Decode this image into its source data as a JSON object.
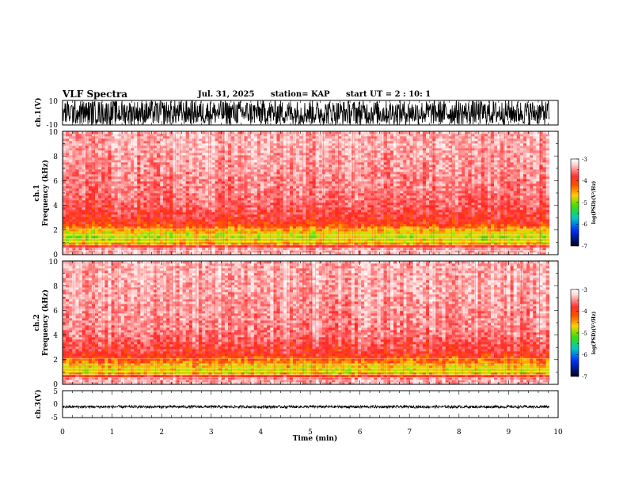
{
  "header": {
    "title": "VLF Spectra",
    "date": "Jul. 31, 2025",
    "station": "station= KAP",
    "start": "start  UT  =   2 : 10: 1"
  },
  "chart_data": [
    {
      "type": "line",
      "name": "ch1-waveform",
      "ylabel": "ch.1(V)",
      "ylim": [
        -10,
        10
      ],
      "y_ticks": [
        "10",
        "-10"
      ],
      "xlim": [
        0,
        10
      ],
      "x_end": 9.82,
      "envelope": {
        "min": -10,
        "max": 10,
        "note": "dense broadband signal saturating the panel"
      }
    },
    {
      "type": "heatmap",
      "name": "ch1-spectrogram",
      "ylabel": "ch.1",
      "ylabel2": "Frequency (kHz)",
      "ylim": [
        0,
        10
      ],
      "y_ticks": [
        "0",
        "2",
        "4",
        "6",
        "8",
        "10"
      ],
      "xlim": [
        0,
        10
      ],
      "x_end": 9.82,
      "intensity_by_freq_khz": [
        [
          0,
          -3.3
        ],
        [
          0.5,
          -3.5
        ],
        [
          1.0,
          -4.6
        ],
        [
          1.5,
          -4.8
        ],
        [
          2.0,
          -4.5
        ],
        [
          2.5,
          -4.0
        ],
        [
          3.0,
          -3.9
        ],
        [
          3.5,
          -3.8
        ],
        [
          4.0,
          -3.7
        ],
        [
          5.0,
          -3.6
        ],
        [
          6.0,
          -3.55
        ],
        [
          7.0,
          -3.5
        ],
        [
          8.0,
          -3.45
        ],
        [
          9.0,
          -3.4
        ],
        [
          10.0,
          -3.4
        ]
      ],
      "colorbar": {
        "title": "log(PSD)(V²/Hz)",
        "range": [
          -7,
          -3
        ],
        "labels": [
          "-3",
          "-4",
          "-5",
          "-6",
          "-7"
        ]
      }
    },
    {
      "type": "heatmap",
      "name": "ch2-spectrogram",
      "ylabel": "ch.2",
      "ylabel2": "Frequency (kHz)",
      "ylim": [
        0,
        10
      ],
      "y_ticks": [
        "0",
        "2",
        "4",
        "6",
        "8",
        "10"
      ],
      "xlim": [
        0,
        10
      ],
      "x_end": 9.82,
      "intensity_by_freq_khz": [
        [
          0,
          -3.3
        ],
        [
          0.5,
          -3.5
        ],
        [
          1.0,
          -4.7
        ],
        [
          1.5,
          -4.5
        ],
        [
          2.0,
          -4.2
        ],
        [
          2.5,
          -3.9
        ],
        [
          3.0,
          -3.8
        ],
        [
          3.5,
          -3.7
        ],
        [
          4.0,
          -3.6
        ],
        [
          5.0,
          -3.5
        ],
        [
          6.0,
          -3.5
        ],
        [
          7.0,
          -3.45
        ],
        [
          8.0,
          -3.4
        ],
        [
          9.0,
          -3.4
        ],
        [
          10.0,
          -3.4
        ]
      ],
      "colorbar": {
        "title": "log(PSD)(V²/Hz)",
        "range": [
          -7,
          -3
        ],
        "labels": [
          "-3",
          "-4",
          "-5",
          "-6",
          "-7"
        ]
      }
    },
    {
      "type": "line",
      "name": "ch3-waveform",
      "ylabel": "ch.3(V)",
      "ylim": [
        -5,
        5
      ],
      "y_ticks": [
        "5",
        "0",
        "-5"
      ],
      "xlim": [
        0,
        10
      ],
      "x_end": 9.82,
      "envelope": {
        "min": -1.5,
        "max": -0.5,
        "note": "narrow band slightly below zero"
      }
    }
  ],
  "xaxis": {
    "label": "Time (min)",
    "ticks": [
      "0",
      "1",
      "2",
      "3",
      "4",
      "5",
      "6",
      "7",
      "8",
      "9",
      "10"
    ]
  },
  "colors": {
    "trace": "#000000",
    "background": "#ffffff"
  }
}
